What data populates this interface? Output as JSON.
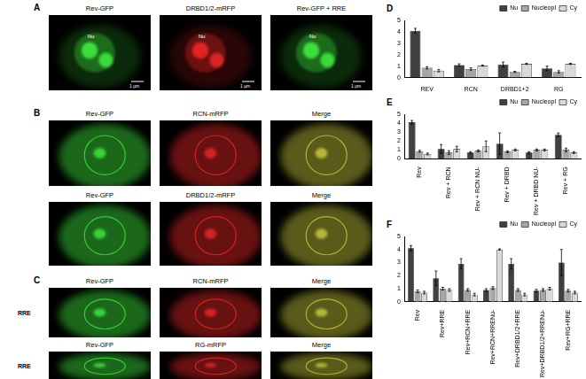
{
  "image_panels": [
    {
      "letter": "A",
      "rows": [
        {
          "images": [
            {
              "label": "Rev-GFP",
              "color": "#3ce63c",
              "annotations": [
                "Nu"
              ],
              "scale_bar": "1 µm"
            },
            {
              "label": "DRBD1/2-mRFP",
              "color": "#e62828",
              "annotations": [
                "Nu"
              ],
              "scale_bar": "1 µm"
            },
            {
              "label": "Rev-GFP + RRE",
              "color": "#3ce63c",
              "annotations": [
                "Nu"
              ],
              "scale_bar": "1 µm"
            }
          ]
        }
      ]
    },
    {
      "letter": "B",
      "rows": [
        {
          "images": [
            {
              "label": "Rev-GFP",
              "color": "#3ce63c"
            },
            {
              "label": "RCN-mRFP",
              "color": "#e62828"
            },
            {
              "label": "Merge",
              "color": "#c8c83c"
            }
          ]
        },
        {
          "images": [
            {
              "label": "Rev-GFP",
              "color": "#3ce63c"
            },
            {
              "label": "DRBD1/2-mRFP",
              "color": "#e62828"
            },
            {
              "label": "Merge",
              "color": "#c8c83c"
            }
          ]
        }
      ]
    },
    {
      "letter": "C",
      "rows": [
        {
          "row_label": "RRE",
          "images": [
            {
              "label": "Rev-GFP",
              "color": "#3ce63c"
            },
            {
              "label": "RCN-mRFP",
              "color": "#e62828"
            },
            {
              "label": "Merge",
              "color": "#c8c83c"
            }
          ]
        },
        {
          "row_label": "RRE",
          "images": [
            {
              "label": "Rev-GFP",
              "color": "#3ce63c"
            },
            {
              "label": "RG-mRFP",
              "color": "#e62828"
            },
            {
              "label": "Merge",
              "color": "#c8c83c"
            }
          ]
        }
      ]
    }
  ],
  "chart_data": [
    {
      "type": "bar",
      "title": "D",
      "categories": [
        "REV",
        "RCN",
        "DRBD1+2",
        "RG"
      ],
      "series": [
        {
          "name": "Nu",
          "color": "#404040",
          "values": [
            4.1,
            1.1,
            1.15,
            0.8
          ],
          "errors": [
            0.2,
            0.1,
            0.2,
            0.2
          ]
        },
        {
          "name": "Nucleopl",
          "color": "#a6a6a6",
          "values": [
            0.85,
            0.75,
            0.5,
            0.5
          ],
          "errors": [
            0.1,
            0.1,
            0.05,
            0.1
          ]
        },
        {
          "name": "Cy",
          "color": "#d9d9d9",
          "values": [
            0.6,
            1.05,
            1.2,
            1.2
          ],
          "errors": [
            0.1,
            0.05,
            0.05,
            0.05
          ]
        }
      ],
      "ylim": [
        0,
        5
      ],
      "yticks": [
        0,
        1,
        2,
        3,
        4,
        5
      ],
      "grid": false,
      "legend": "upper right"
    },
    {
      "type": "bar",
      "title": "E",
      "categories": [
        "Rev",
        "Rev + RCN",
        "Rev + RCN NU-",
        "Rev + DRBD",
        "Rev + DRBD NU-",
        "Rev + RG"
      ],
      "series": [
        {
          "name": "Nu",
          "color": "#404040",
          "values": [
            4.1,
            1.1,
            0.7,
            1.7,
            0.7,
            2.7
          ],
          "errors": [
            0.2,
            0.5,
            0.1,
            1.2,
            0.1,
            0.2
          ]
        },
        {
          "name": "Nucleopl",
          "color": "#a6a6a6",
          "values": [
            0.85,
            0.7,
            0.9,
            0.8,
            1.0,
            1.0
          ],
          "errors": [
            0.1,
            0.2,
            0.1,
            0.1,
            0.1,
            0.2
          ]
        },
        {
          "name": "Cy",
          "color": "#d9d9d9",
          "values": [
            0.55,
            1.1,
            1.4,
            1.0,
            1.0,
            0.7
          ],
          "errors": [
            0.1,
            0.3,
            0.6,
            0.1,
            0.1,
            0.1
          ]
        }
      ],
      "ylim": [
        0,
        5
      ],
      "yticks": [
        0,
        1,
        2,
        3,
        4,
        5
      ],
      "grid": false,
      "legend": "upper right"
    },
    {
      "type": "bar",
      "title": "F",
      "categories": [
        "Rev",
        "Rev+RRE",
        "Rev+RCN+RRE",
        "Rev+RCN+RRENu-",
        "Rev+DRBD1/2+RRE",
        "Rev+DRBD1/2+RRENu-",
        "Rev+RG+RRE"
      ],
      "series": [
        {
          "name": "Nu",
          "color": "#404040",
          "values": [
            4.1,
            1.8,
            2.9,
            0.9,
            2.9,
            0.85,
            3.0
          ],
          "errors": [
            0.2,
            0.55,
            0.4,
            0.1,
            0.4,
            0.1,
            1.0
          ]
        },
        {
          "name": "Nucleopl",
          "color": "#a6a6a6",
          "values": [
            0.8,
            1.0,
            0.9,
            1.05,
            0.9,
            0.9,
            0.85
          ],
          "errors": [
            0.1,
            0.1,
            0.1,
            0.1,
            0.1,
            0.1,
            0.1
          ]
        },
        {
          "name": "Cy",
          "color": "#d9d9d9",
          "values": [
            0.7,
            0.9,
            0.55,
            4.0,
            0.55,
            1.0,
            0.7
          ],
          "errors": [
            0.1,
            0.1,
            0.1,
            0.05,
            0.1,
            0.1,
            0.1
          ]
        }
      ],
      "ylim": [
        0,
        5
      ],
      "yticks": [
        0,
        1,
        2,
        3,
        4,
        5
      ],
      "grid": false,
      "legend": "upper right"
    }
  ]
}
